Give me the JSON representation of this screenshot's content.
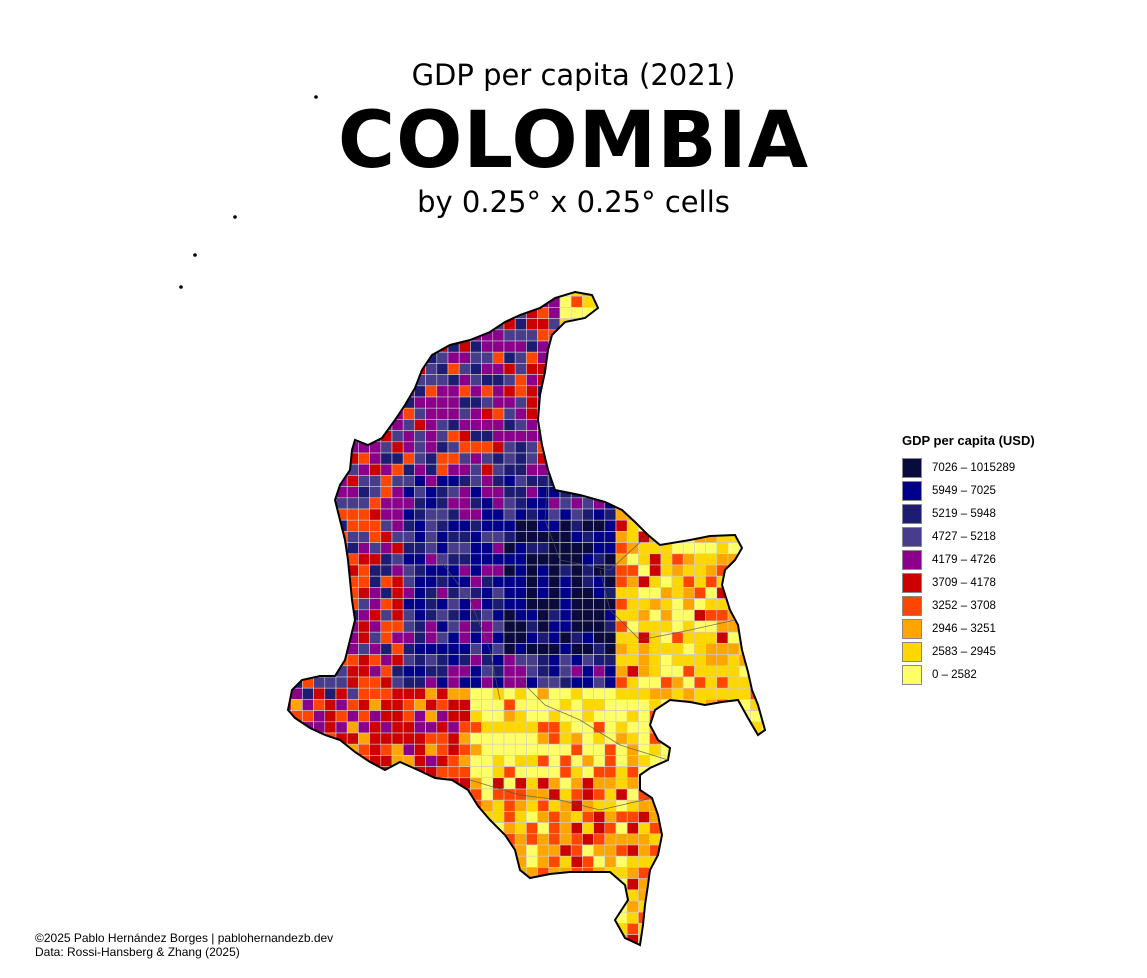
{
  "header": {
    "subtitle_top": "GDP per capita (2021)",
    "title": "COLOMBIA",
    "subtitle_bottom": "by 0.25° x 0.25° cells"
  },
  "legend": {
    "title": "GDP per capita (USD)",
    "classes": [
      {
        "label": "7026 – 1015289",
        "color": "#0a0a3c"
      },
      {
        "label": "5949 – 7025",
        "color": "#00008b"
      },
      {
        "label": "5219 – 5948",
        "color": "#1c1c72"
      },
      {
        "label": "4727 – 5218",
        "color": "#483d8b"
      },
      {
        "label": "4179 – 4726",
        "color": "#8b008b"
      },
      {
        "label": "3709 – 4178",
        "color": "#cc0000"
      },
      {
        "label": "3252 – 3708",
        "color": "#ff4500"
      },
      {
        "label": "2946 – 3251",
        "color": "#ffa500"
      },
      {
        "label": "2583 – 2945",
        "color": "#ffd700"
      },
      {
        "label": "0 – 2582",
        "color": "#ffff66"
      }
    ]
  },
  "map": {
    "country": "Colombia",
    "grid_resolution_degrees": 0.25,
    "border_color": "#000000",
    "cell_outline_color": "#cccccc"
  },
  "credits": {
    "line1": "©2025 Pablo Hernández Borges | pablohernandezb.dev",
    "line2": "Data: Rossi-Hansberg & Zhang (2025)"
  }
}
